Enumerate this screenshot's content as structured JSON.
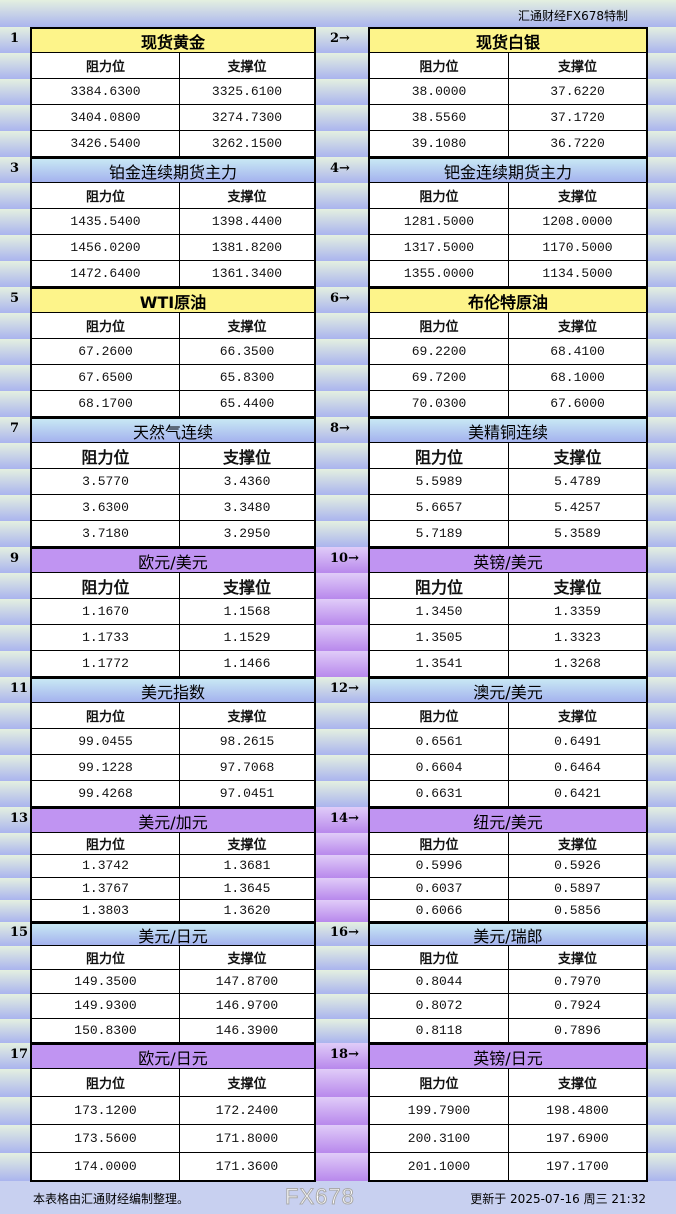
{
  "brand": "汇通财经FX678特制",
  "column_headers": {
    "resistance": "阻力位",
    "support": "支撑位"
  },
  "colors": {
    "yellow": "#fdf48a",
    "blue": "#a4b2ee",
    "purple": "#c094f2"
  },
  "sections": [
    {
      "num": "1",
      "title": "现货黄金",
      "color": "yellow",
      "rows": [
        [
          "3384.6300",
          "3325.6100"
        ],
        [
          "3404.0800",
          "3274.7300"
        ],
        [
          "3426.5400",
          "3262.1500"
        ]
      ]
    },
    {
      "num": "2→",
      "title": "现货白银",
      "color": "yellow",
      "rows": [
        [
          "38.0000",
          "37.6220"
        ],
        [
          "38.5560",
          "37.1720"
        ],
        [
          "39.1080",
          "36.7220"
        ]
      ]
    },
    {
      "num": "3",
      "title": "铂金连续期货主力",
      "color": "blue",
      "rows": [
        [
          "1435.5400",
          "1398.4400"
        ],
        [
          "1456.0200",
          "1381.8200"
        ],
        [
          "1472.6400",
          "1361.3400"
        ]
      ]
    },
    {
      "num": "4→",
      "title": "钯金连续期货主力",
      "color": "blue",
      "rows": [
        [
          "1281.5000",
          "1208.0000"
        ],
        [
          "1317.5000",
          "1170.5000"
        ],
        [
          "1355.0000",
          "1134.5000"
        ]
      ]
    },
    {
      "num": "5",
      "title": "WTI原油",
      "color": "yellow",
      "rows": [
        [
          "67.2600",
          "66.3500"
        ],
        [
          "67.6500",
          "65.8300"
        ],
        [
          "68.1700",
          "65.4400"
        ]
      ]
    },
    {
      "num": "6→",
      "title": "布伦特原油",
      "color": "yellow",
      "rows": [
        [
          "69.2200",
          "68.4100"
        ],
        [
          "69.7200",
          "68.1000"
        ],
        [
          "70.0300",
          "67.6000"
        ]
      ]
    },
    {
      "num": "7",
      "title": "天然气连续",
      "color": "blue",
      "rows": [
        [
          "3.5770",
          "3.4360"
        ],
        [
          "3.6300",
          "3.3480"
        ],
        [
          "3.7180",
          "3.2950"
        ]
      ]
    },
    {
      "num": "8→",
      "title": "美精铜连续",
      "color": "blue",
      "rows": [
        [
          "5.5989",
          "5.4789"
        ],
        [
          "5.6657",
          "5.4257"
        ],
        [
          "5.7189",
          "5.3589"
        ]
      ]
    },
    {
      "num": "9",
      "title": "欧元/美元",
      "color": "purple",
      "rows": [
        [
          "1.1670",
          "1.1568"
        ],
        [
          "1.1733",
          "1.1529"
        ],
        [
          "1.1772",
          "1.1466"
        ]
      ]
    },
    {
      "num": "10→",
      "title": "英镑/美元",
      "color": "purple",
      "rows": [
        [
          "1.3450",
          "1.3359"
        ],
        [
          "1.3505",
          "1.3323"
        ],
        [
          "1.3541",
          "1.3268"
        ]
      ]
    },
    {
      "num": "11",
      "title": "美元指数",
      "color": "blue",
      "rows": [
        [
          "99.0455",
          "98.2615"
        ],
        [
          "99.1228",
          "97.7068"
        ],
        [
          "99.4268",
          "97.0451"
        ]
      ]
    },
    {
      "num": "12→",
      "title": "澳元/美元",
      "color": "blue",
      "rows": [
        [
          "0.6561",
          "0.6491"
        ],
        [
          "0.6604",
          "0.6464"
        ],
        [
          "0.6631",
          "0.6421"
        ]
      ]
    },
    {
      "num": "13",
      "title": "美元/加元",
      "color": "purple",
      "rows": [
        [
          "1.3742",
          "1.3681"
        ],
        [
          "1.3767",
          "1.3645"
        ],
        [
          "1.3803",
          "1.3620"
        ]
      ]
    },
    {
      "num": "14→",
      "title": "纽元/美元",
      "color": "purple",
      "rows": [
        [
          "0.5996",
          "0.5926"
        ],
        [
          "0.6037",
          "0.5897"
        ],
        [
          "0.6066",
          "0.5856"
        ]
      ]
    },
    {
      "num": "15",
      "title": "美元/日元",
      "color": "blue",
      "rows": [
        [
          "149.3500",
          "147.8700"
        ],
        [
          "149.9300",
          "146.9700"
        ],
        [
          "150.8300",
          "146.3900"
        ]
      ]
    },
    {
      "num": "16→",
      "title": "美元/瑞郎",
      "color": "blue",
      "rows": [
        [
          "0.8044",
          "0.7970"
        ],
        [
          "0.8072",
          "0.7924"
        ],
        [
          "0.8118",
          "0.7896"
        ]
      ]
    },
    {
      "num": "17",
      "title": "欧元/日元",
      "color": "purple",
      "rows": [
        [
          "173.1200",
          "172.2400"
        ],
        [
          "173.5600",
          "171.8000"
        ],
        [
          "174.0000",
          "171.3600"
        ]
      ]
    },
    {
      "num": "18→",
      "title": "英镑/日元",
      "color": "purple",
      "rows": [
        [
          "199.7900",
          "198.4800"
        ],
        [
          "200.3100",
          "197.6900"
        ],
        [
          "201.1000",
          "197.1700"
        ]
      ]
    }
  ],
  "footer": {
    "note": "本表格由汇通财经编制整理。",
    "updated": "更新于 2025-07-16 周三 21:32"
  },
  "watermark": "FX678"
}
